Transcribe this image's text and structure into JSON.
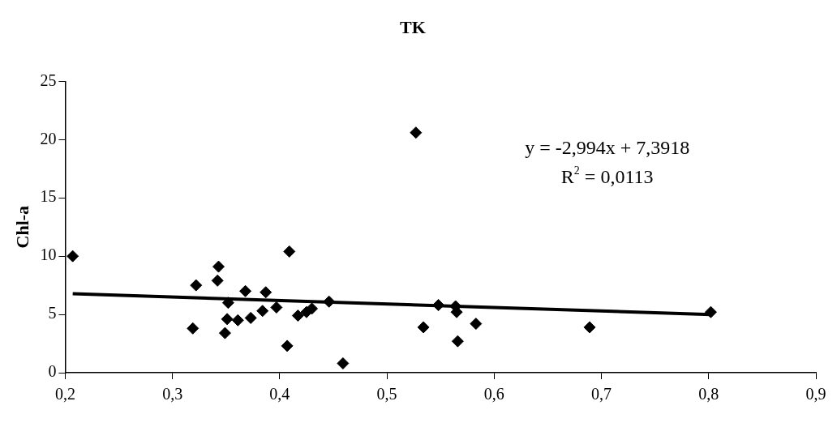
{
  "chart_data": {
    "type": "scatter",
    "title": "TK",
    "ylabel": "Chl-a",
    "xlim": [
      0.2,
      0.9
    ],
    "ylim": [
      0,
      25
    ],
    "xticks": [
      {
        "value": 0.2,
        "label": "0,2"
      },
      {
        "value": 0.3,
        "label": "0,3"
      },
      {
        "value": 0.4,
        "label": "0,4"
      },
      {
        "value": 0.5,
        "label": "0,5"
      },
      {
        "value": 0.6,
        "label": "0,6"
      },
      {
        "value": 0.7,
        "label": "0,7"
      },
      {
        "value": 0.8,
        "label": "0,8"
      },
      {
        "value": 0.9,
        "label": "0,9"
      }
    ],
    "yticks": [
      0,
      5,
      10,
      15,
      20,
      25
    ],
    "grid": false,
    "legend": false,
    "annotations": [
      "y = -2,994x + 7,3918",
      "R$^{2}$ = 0,0113"
    ],
    "series": [
      {
        "marker": "diamond",
        "color": "#000000",
        "x": [
          0.207,
          0.319,
          0.322,
          0.343,
          0.342,
          0.352,
          0.351,
          0.349,
          0.361,
          0.368,
          0.373,
          0.384,
          0.387,
          0.397,
          0.407,
          0.409,
          0.417,
          0.425,
          0.43,
          0.446,
          0.459,
          0.527,
          0.534,
          0.548,
          0.564,
          0.565,
          0.566,
          0.583,
          0.689,
          0.802
        ],
        "values": [
          10,
          3.8,
          7.5,
          9.1,
          7.9,
          6.0,
          4.6,
          3.4,
          4.5,
          7.0,
          4.7,
          5.3,
          6.9,
          5.6,
          2.3,
          10.4,
          4.9,
          5.2,
          5.5,
          6.1,
          0.8,
          20.6,
          3.9,
          5.8,
          5.7,
          5.2,
          2.7,
          4.2,
          3.9,
          5.2
        ]
      },
      {
        "type": "line",
        "marker": "none",
        "color": "#000000",
        "x": [
          0.207,
          0.802
        ],
        "values": [
          6.77,
          4.99
        ]
      }
    ]
  }
}
